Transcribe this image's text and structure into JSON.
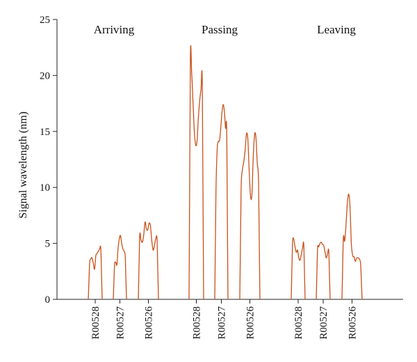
{
  "chart_data": {
    "type": "line",
    "title": "",
    "xlabel": "",
    "ylabel": "Signal wavelength (nm)",
    "ylim": [
      0,
      25
    ],
    "yticks": [
      0,
      5,
      10,
      15,
      20,
      25
    ],
    "grid": false,
    "legend": "none",
    "line_color": "#c8501a",
    "groups": [
      {
        "name": "Arriving",
        "sensors": [
          {
            "label": "R00528",
            "start": 0.0,
            "end": 1.0,
            "values": [
              0,
              3.1,
              3.6,
              3.7,
              3.2,
              2.7,
              3.9,
              4.1,
              4.3,
              4.5,
              4.4,
              0
            ]
          },
          {
            "label": "R00527",
            "start": 0.0,
            "end": 1.0,
            "values": [
              0,
              3.0,
              3.3,
              3.1,
              4.6,
              5.4,
              5.7,
              5.0,
              4.5,
              4.3,
              3.7,
              0
            ]
          },
          {
            "label": "R00526",
            "start": 0.0,
            "end": 1.0,
            "values": [
              0,
              5.6,
              5.3,
              5.1,
              5.7,
              6.9,
              6.3,
              6.2,
              6.8,
              6.6,
              5.3,
              4.4,
              4.8,
              5.4,
              5.2,
              0
            ]
          }
        ]
      },
      {
        "name": "Passing",
        "sensors": [
          {
            "label": "R00528",
            "start": 0.0,
            "end": 1.0,
            "values": [
              0,
              21.3,
              20.2,
              17.6,
              15.0,
              13.8,
              14.1,
              16.2,
              17.7,
              18.7,
              19.1,
              0
            ]
          },
          {
            "label": "R00527",
            "start": 0.0,
            "end": 1.0,
            "values": [
              0,
              9.5,
              13.4,
              14.1,
              14.2,
              15.3,
              16.7,
              17.4,
              16.8,
              15.3,
              14.7,
              0
            ]
          },
          {
            "label": "R00526",
            "start": 0.0,
            "end": 1.0,
            "values": [
              0,
              9.8,
              11.6,
              12.3,
              13.3,
              14.8,
              14.3,
              11.5,
              9.2,
              9.3,
              12.6,
              14.7,
              14.5,
              12.2,
              10.3,
              0
            ]
          }
        ]
      },
      {
        "name": "Leaving",
        "sensors": [
          {
            "label": "R00528",
            "start": 0.0,
            "end": 1.0,
            "values": [
              0,
              4.9,
              5.4,
              4.7,
              4.2,
              4.4,
              3.7,
              3.5,
              4.0,
              4.6,
              4.8,
              0
            ]
          },
          {
            "label": "R00527",
            "start": 0.0,
            "end": 1.0,
            "values": [
              0,
              4.4,
              4.7,
              5.0,
              5.1,
              4.9,
              4.8,
              4.2,
              3.7,
              4.1,
              4.2,
              0
            ]
          },
          {
            "label": "R00526",
            "start": 0.0,
            "end": 1.0,
            "values": [
              0,
              5.4,
              5.2,
              6.6,
              8.5,
              9.4,
              8.3,
              5.0,
              3.9,
              3.8,
              3.4,
              3.7,
              3.7,
              3.6,
              3.0,
              0
            ]
          }
        ]
      }
    ]
  }
}
